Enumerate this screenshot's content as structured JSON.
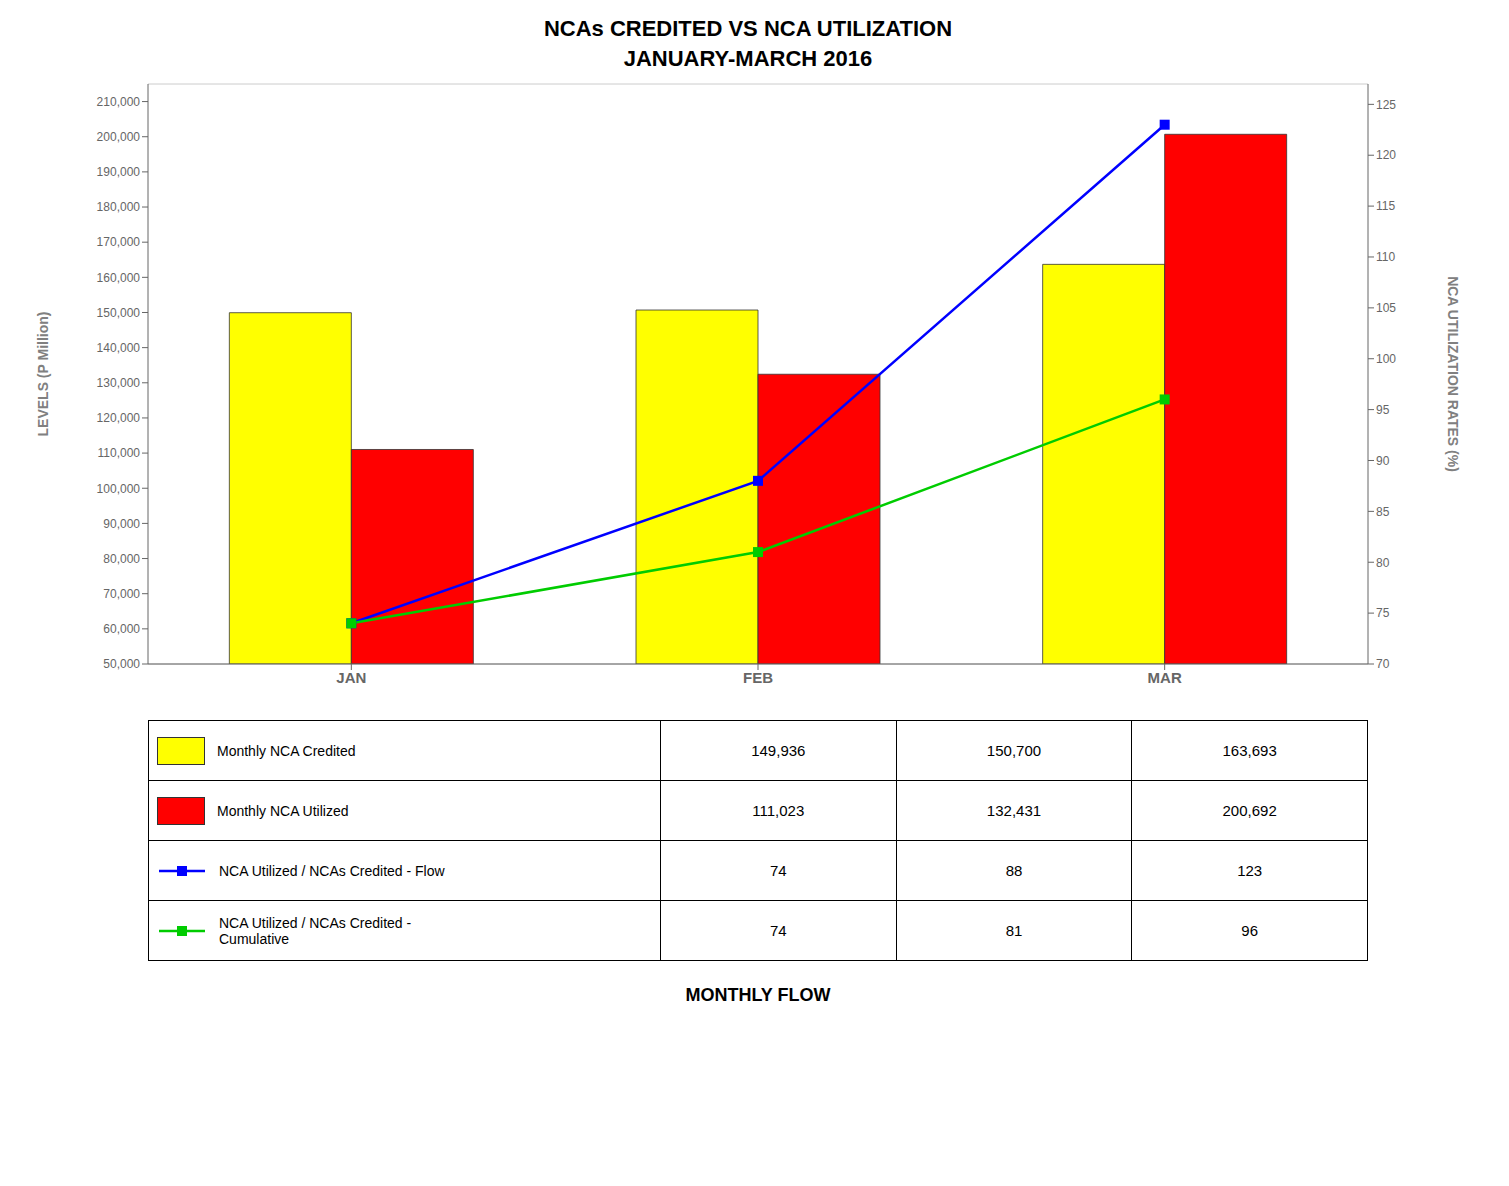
{
  "chart_data": {
    "type": "bar",
    "title": "NCAs CREDITED VS NCA UTILIZATION",
    "subtitle": "JANUARY-MARCH 2016",
    "x_label": "MONTHLY FLOW",
    "y_label": "LEVELS (P Million)",
    "y2_label": "NCA UTILIZATION RATES (%)",
    "categories": [
      "JAN",
      "FEB",
      "MAR"
    ],
    "series": [
      {
        "name": "Monthly NCA Credited",
        "type": "bar",
        "color": "#FFFF00",
        "values": [
          149936,
          150700,
          163693
        ],
        "value_labels": [
          "149,936",
          "150,700",
          "163,693"
        ]
      },
      {
        "name": "Monthly NCA Utilized",
        "type": "bar",
        "color": "#FF0000",
        "values": [
          111023,
          132431,
          200692
        ],
        "value_labels": [
          "111,023",
          "132,431",
          "200,692"
        ]
      },
      {
        "name": "NCA Utilized / NCAs Credited - Flow",
        "type": "line",
        "axis": "y2",
        "color": "#0000FF",
        "marker": "square",
        "values": [
          74,
          88,
          123
        ]
      },
      {
        "name": "NCA Utilized / NCAs Credited -\nCumulative",
        "type": "line",
        "axis": "y2",
        "color": "#00CC00",
        "marker": "square",
        "values": [
          74,
          81,
          96
        ]
      }
    ],
    "ylim": [
      50000,
      215000
    ],
    "yticks": [
      {
        "value": 50000,
        "label": "50,000"
      },
      {
        "value": 60000,
        "label": "60,000"
      },
      {
        "value": 70000,
        "label": "70,000"
      },
      {
        "value": 80000,
        "label": "80,000"
      },
      {
        "value": 90000,
        "label": "90,000"
      },
      {
        "value": 100000,
        "label": "100,000"
      },
      {
        "value": 110000,
        "label": "110,000"
      },
      {
        "value": 120000,
        "label": "120,000"
      },
      {
        "value": 130000,
        "label": "130,000"
      },
      {
        "value": 140000,
        "label": "140,000"
      },
      {
        "value": 150000,
        "label": "150,000"
      },
      {
        "value": 160000,
        "label": "160,000"
      },
      {
        "value": 170000,
        "label": "170,000"
      },
      {
        "value": 180000,
        "label": "180,000"
      },
      {
        "value": 190000,
        "label": "190,000"
      },
      {
        "value": 200000,
        "label": "200,000"
      },
      {
        "value": 210000,
        "label": "210,000"
      }
    ],
    "y2lim": [
      70,
      127
    ],
    "y2ticks": [
      70,
      75,
      80,
      85,
      90,
      95,
      100,
      105,
      110,
      115,
      120,
      125
    ],
    "grid": true
  }
}
